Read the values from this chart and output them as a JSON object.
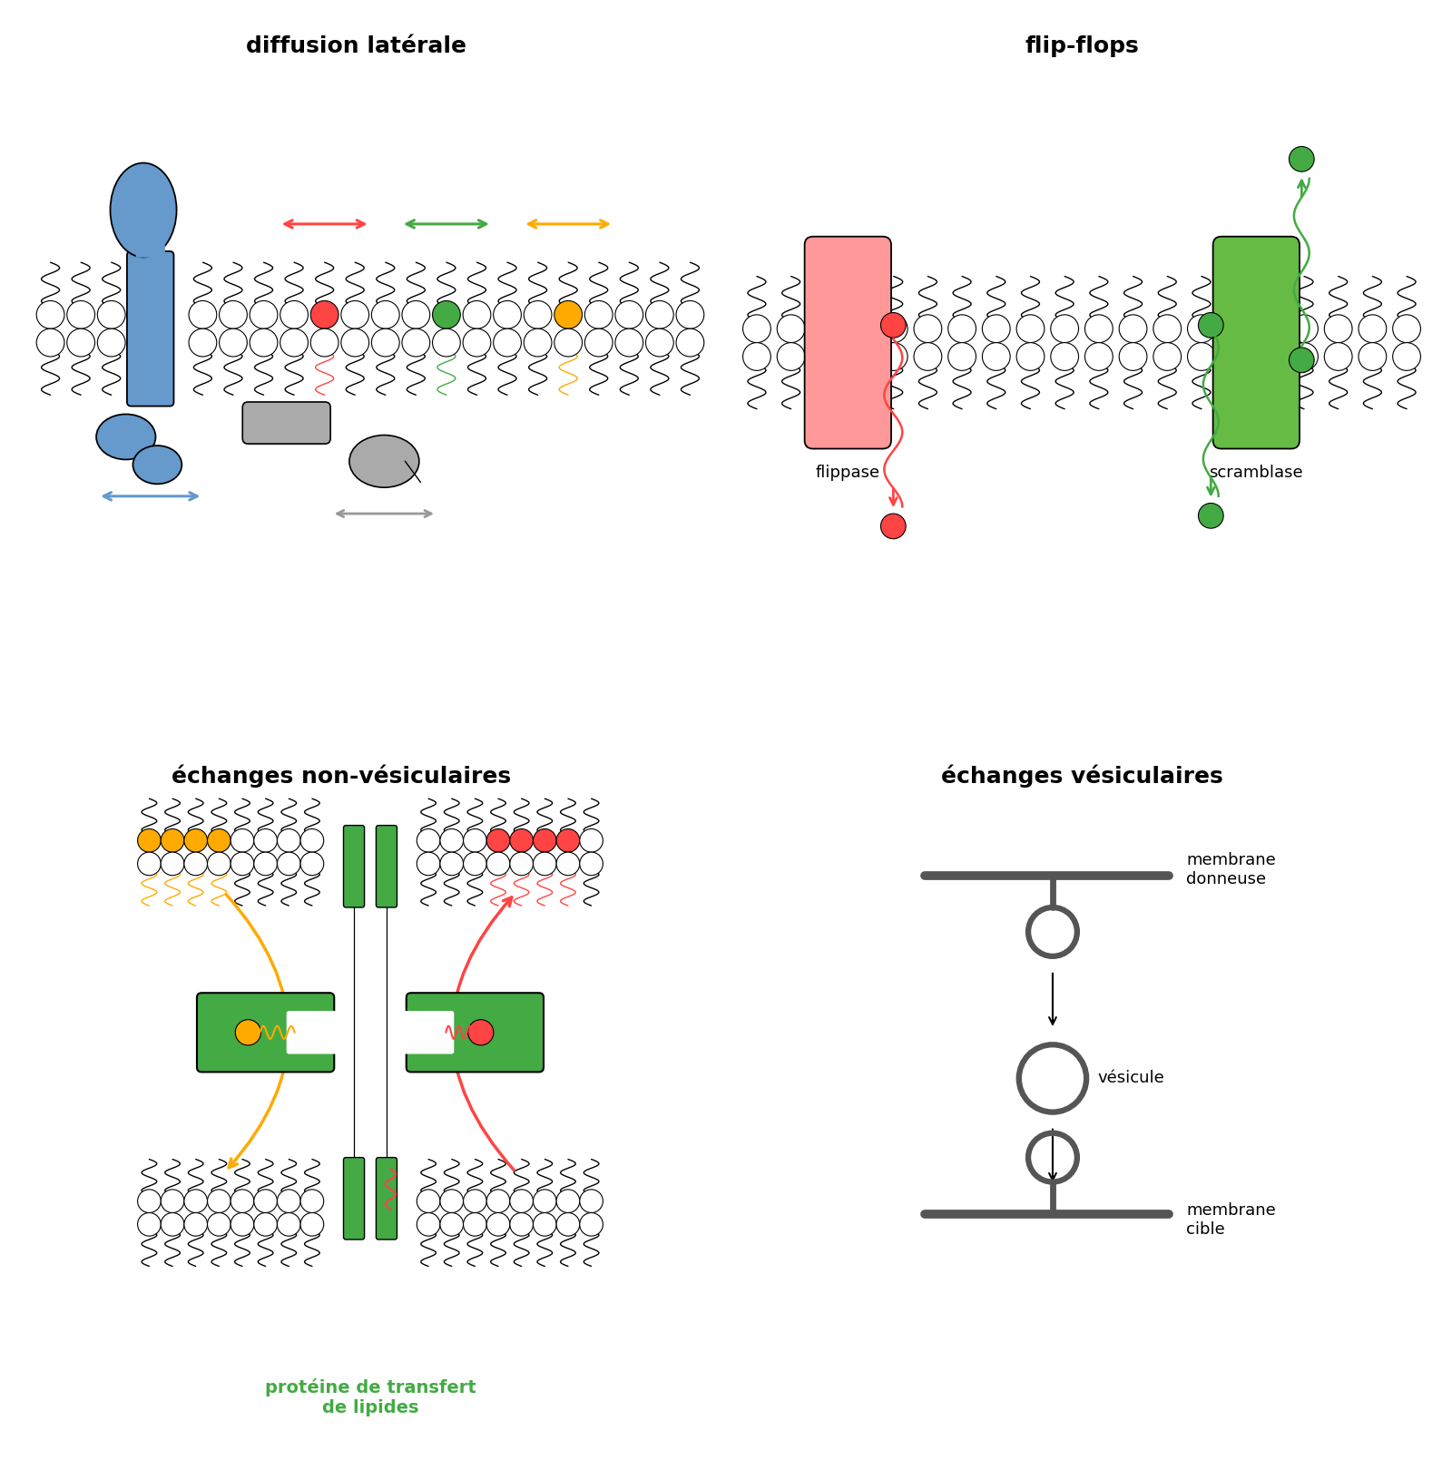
{
  "title_diffusion": "diffusion latérale",
  "title_flipflops": "flip-flops",
  "title_nonves": "échanges non-vésiculaires",
  "title_ves": "échanges vésiculaires",
  "label_flippase": "flippase",
  "label_scramblase": "scramblase",
  "label_proteine": "protéine de transfert\nde lipides",
  "label_membrane_donneuse": "membrane\ndonneuse",
  "label_vesicule": "vésicule",
  "label_membrane_cible": "membrane\ncible",
  "color_blue": "#6699cc",
  "color_red": "#ff4444",
  "color_green": "#44aa44",
  "color_yellow": "#ffaa00",
  "color_gray": "#888888",
  "color_pink": "#ff9999",
  "color_light_green": "#66bb44",
  "color_dark_gray": "#555555",
  "bg_color": "#ffffff",
  "title_fontsize": 18,
  "label_fontsize": 13
}
